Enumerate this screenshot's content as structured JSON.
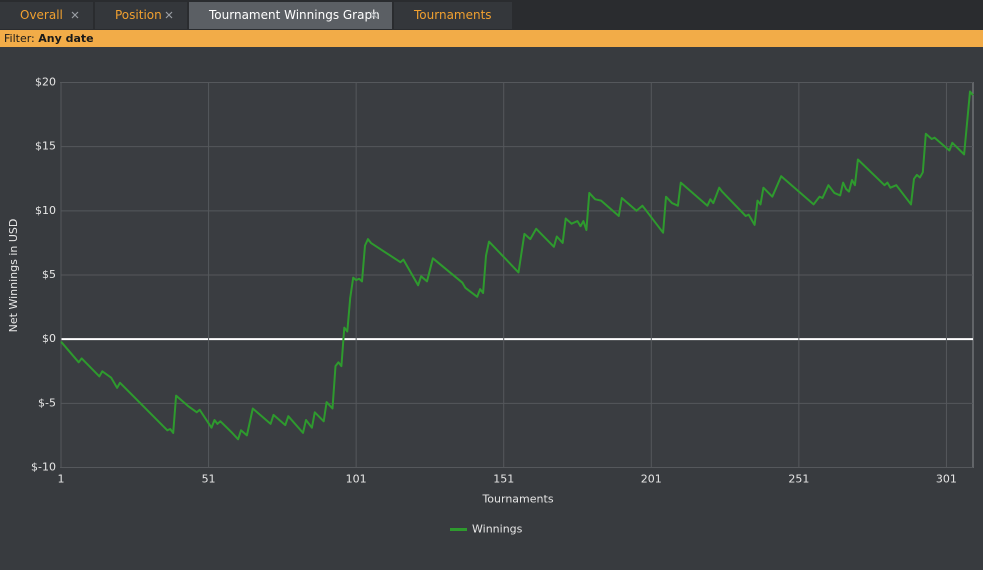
{
  "tabs": [
    "Overall",
    "Position",
    "Tournament Winnings Graph",
    "Tournaments"
  ],
  "filter": {
    "label": "Filter:",
    "value": "Any date"
  },
  "chart_data": {
    "type": "line",
    "ylabel": "Net Winnings in USD",
    "xlabel": "Tournaments",
    "x": [
      1,
      7,
      8,
      14,
      15,
      18,
      20,
      21,
      37,
      38,
      39,
      40,
      44,
      47,
      48,
      52,
      53,
      54,
      55,
      59,
      61,
      62,
      64,
      66,
      72,
      73,
      77,
      78,
      83,
      84,
      86,
      87,
      90,
      91,
      93,
      94,
      95,
      96,
      97,
      98,
      99,
      100,
      101,
      102,
      103,
      104,
      105,
      106,
      116,
      117,
      122,
      123,
      125,
      127,
      137,
      138,
      142,
      143,
      144,
      145,
      146,
      156,
      158,
      160,
      162,
      168,
      169,
      171,
      172,
      174,
      176,
      177,
      178,
      179,
      180,
      182,
      184,
      190,
      191,
      196,
      198,
      205,
      206,
      208,
      210,
      211,
      220,
      221,
      222,
      224,
      225,
      233,
      234,
      236,
      237,
      238,
      239,
      242,
      245,
      256,
      258,
      259,
      261,
      263,
      265,
      266,
      267,
      268,
      269,
      270,
      271,
      280,
      281,
      282,
      284,
      289,
      290,
      291,
      292,
      293,
      294,
      296,
      297,
      302,
      303,
      307,
      309,
      310
    ],
    "series": [
      {
        "name": "Winnings",
        "color": "#2e9a2e",
        "values": [
          -0.2,
          -1.8,
          -1.5,
          -2.9,
          -2.5,
          -3.0,
          -3.8,
          -3.4,
          -7.1,
          -7.0,
          -7.3,
          -4.4,
          -5.2,
          -5.7,
          -5.5,
          -6.9,
          -6.3,
          -6.6,
          -6.4,
          -7.3,
          -7.8,
          -7.1,
          -7.5,
          -5.4,
          -6.6,
          -5.9,
          -6.7,
          -6.0,
          -7.3,
          -6.3,
          -6.9,
          -5.7,
          -6.4,
          -4.9,
          -5.4,
          -2.1,
          -1.8,
          -2.1,
          0.9,
          0.6,
          3.2,
          4.8,
          4.6,
          4.7,
          4.5,
          7.3,
          7.8,
          7.5,
          6.0,
          6.2,
          4.2,
          4.9,
          4.5,
          6.3,
          4.4,
          4.0,
          3.3,
          3.9,
          3.6,
          6.5,
          7.6,
          5.2,
          8.2,
          7.8,
          8.6,
          7.2,
          8.0,
          7.5,
          9.4,
          9.0,
          9.2,
          8.8,
          9.2,
          8.5,
          11.4,
          10.9,
          10.8,
          9.6,
          11.0,
          10.0,
          10.4,
          8.3,
          11.1,
          10.6,
          10.4,
          12.2,
          10.4,
          10.9,
          10.6,
          11.8,
          11.5,
          9.6,
          9.7,
          8.9,
          10.8,
          10.5,
          11.8,
          11.1,
          12.7,
          10.5,
          11.1,
          11.0,
          12.0,
          11.4,
          11.2,
          12.2,
          11.7,
          11.5,
          12.4,
          12.0,
          14.0,
          12.0,
          12.2,
          11.8,
          12.0,
          10.5,
          12.5,
          12.8,
          12.6,
          13.0,
          16.0,
          15.6,
          15.7,
          14.7,
          15.3,
          14.4,
          19.3,
          19.0
        ]
      }
    ],
    "xlim": [
      1,
      310
    ],
    "xticks": [
      1,
      51,
      101,
      151,
      201,
      251,
      301
    ],
    "ylim": [
      -10,
      20
    ],
    "yticks": [
      {
        "value": -10,
        "label": "$-10"
      },
      {
        "value": -5,
        "label": "$-5"
      },
      {
        "value": 0,
        "label": "$0"
      },
      {
        "value": 5,
        "label": "$5"
      },
      {
        "value": 10,
        "label": "$10"
      },
      {
        "value": 15,
        "label": "$15"
      },
      {
        "value": 20,
        "label": "$20"
      }
    ],
    "grid": true,
    "legend": "bottom"
  }
}
